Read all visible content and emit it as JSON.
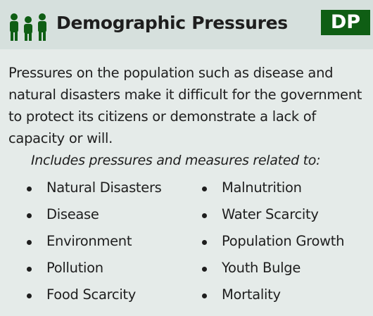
{
  "header": {
    "title": "Demographic Pressures",
    "badge": "DP"
  },
  "description": "Pressures on the population such as disease and natural disasters make it difficult for the government to protect its citizens or demonstrate a lack of capacity or will.",
  "intro": "Includes pressures and measures related to:",
  "columns": [
    [
      "Natural Disasters",
      "Disease",
      "Environment",
      "Pollution",
      "Food Scarcity"
    ],
    [
      "Malnutrition",
      "Water Scarcity",
      "Population Growth",
      "Youth Bulge",
      "Mortality"
    ]
  ]
}
